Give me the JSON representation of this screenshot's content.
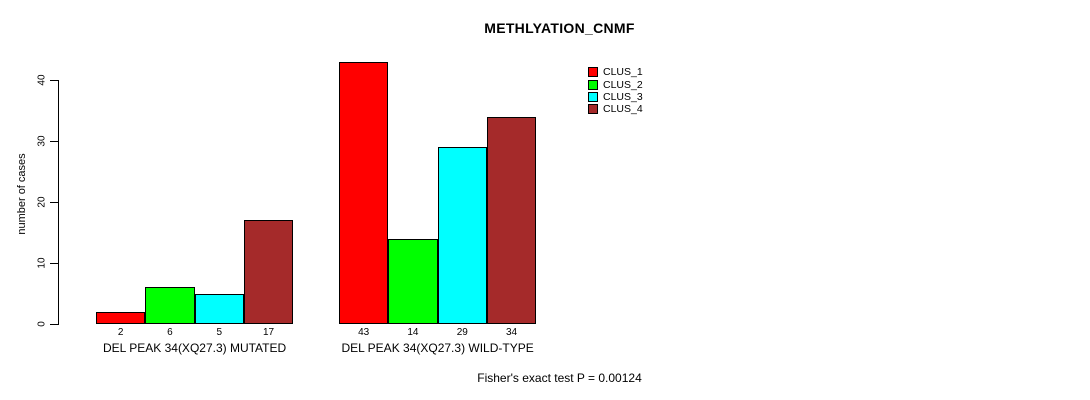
{
  "title": "METHLYATION_CNMF",
  "ylabel": "number of cases",
  "footer": "Fisher's exact test P = 0.00124",
  "legend": {
    "position": "top-right",
    "items": [
      {
        "label": "CLUS_1",
        "color": "#FF0000"
      },
      {
        "label": "CLUS_2",
        "color": "#00FF00"
      },
      {
        "label": "CLUS_3",
        "color": "#00FFFF"
      },
      {
        "label": "CLUS_4",
        "color": "#A52A2A"
      }
    ]
  },
  "chart_data": {
    "type": "bar",
    "title": "METHLYATION_CNMF",
    "xlabel": "",
    "ylabel": "number of cases",
    "categories": [
      "DEL PEAK 34(XQ27.3) MUTATED",
      "DEL PEAK 34(XQ27.3) WILD-TYPE"
    ],
    "series": [
      {
        "name": "CLUS_1",
        "color": "#FF0000",
        "values": [
          2,
          43
        ]
      },
      {
        "name": "CLUS_2",
        "color": "#00FF00",
        "values": [
          6,
          14
        ]
      },
      {
        "name": "CLUS_3",
        "color": "#00FFFF",
        "values": [
          5,
          29
        ]
      },
      {
        "name": "CLUS_4",
        "color": "#A52A2A",
        "values": [
          17,
          34
        ]
      }
    ],
    "bar_value_labels": [
      [
        "2",
        "6",
        "5",
        "17"
      ],
      [
        "43",
        "14",
        "29",
        "34"
      ]
    ],
    "yticks": [
      0,
      10,
      20,
      30,
      40
    ],
    "ylim": [
      0,
      43
    ],
    "grid": false,
    "legend_position": "top-right",
    "annotation": "Fisher's exact test P = 0.00124"
  }
}
